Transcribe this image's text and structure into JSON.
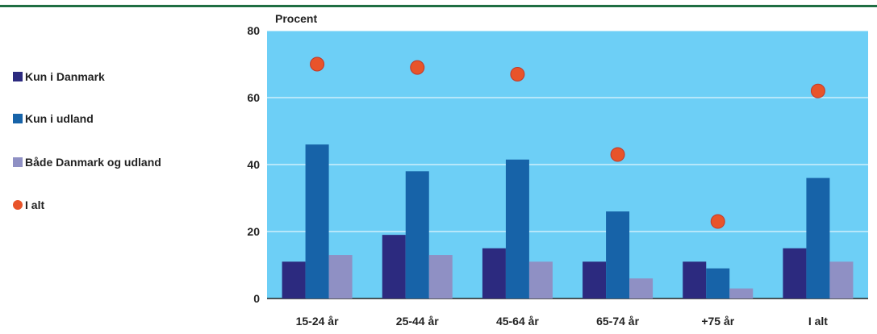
{
  "chart_data": {
    "type": "bar",
    "ylabel": "Procent",
    "ylim": [
      0,
      80
    ],
    "yticks": [
      0,
      20,
      40,
      60,
      80
    ],
    "categories": [
      "15-24 år",
      "25-44 år",
      "45-64 år",
      "65-74 år",
      "+75 år",
      "I alt"
    ],
    "series": [
      {
        "name": "Kun i Danmark",
        "kind": "bar",
        "color": "#2c2a7f",
        "values": [
          11,
          19,
          15,
          11,
          11,
          15
        ]
      },
      {
        "name": "Kun i udland",
        "kind": "bar",
        "color": "#1763a8",
        "values": [
          46,
          38,
          41.5,
          26,
          9,
          36
        ]
      },
      {
        "name": "Både Danmark og udland",
        "kind": "bar",
        "color": "#8f90c4",
        "values": [
          13,
          13,
          11,
          6,
          3,
          11
        ]
      },
      {
        "name": "I alt",
        "kind": "dot",
        "color": "#e8542a",
        "values": [
          70,
          69,
          67,
          43,
          23,
          62
        ]
      }
    ],
    "plot_background": "#6dcff6",
    "legend_position": "left"
  }
}
